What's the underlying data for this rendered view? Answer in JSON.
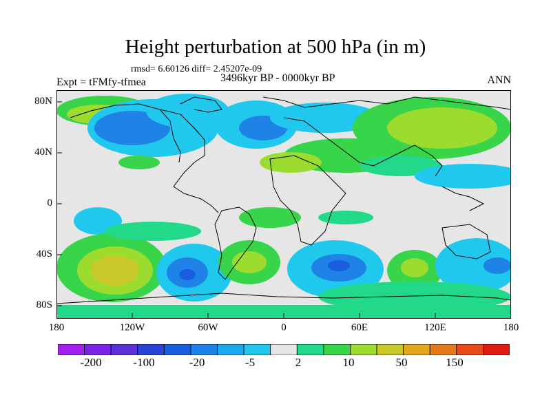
{
  "title": "Height perturbation at 500 hPa (in m)",
  "stats": "rmsd= 6.60126 diff= 2.45207e-09",
  "experiment": "Expt = tFMfy-tfmea",
  "period": "3496kyr BP - 0000kyr BP",
  "season": "ANN",
  "axes": {
    "y_labels": [
      "80N",
      "40N",
      "0",
      "40S",
      "80S"
    ],
    "x_labels": [
      "180",
      "120W",
      "60W",
      "0",
      "60E",
      "120E",
      "180"
    ]
  },
  "colorbar": {
    "labels": [
      "-200",
      "-100",
      "-20",
      "-5",
      "2",
      "10",
      "50",
      "150"
    ],
    "colors": [
      "#a020f0",
      "#7a24e6",
      "#5a32d8",
      "#2a44d8",
      "#1a5ee0",
      "#1e82e6",
      "#20a8ee",
      "#20c8ee",
      "#e6e6e6",
      "#22d98a",
      "#38d44a",
      "#9bdc2e",
      "#c8c82a",
      "#e3a71e",
      "#e57a1c",
      "#e54a18",
      "#e01a14"
    ]
  }
}
